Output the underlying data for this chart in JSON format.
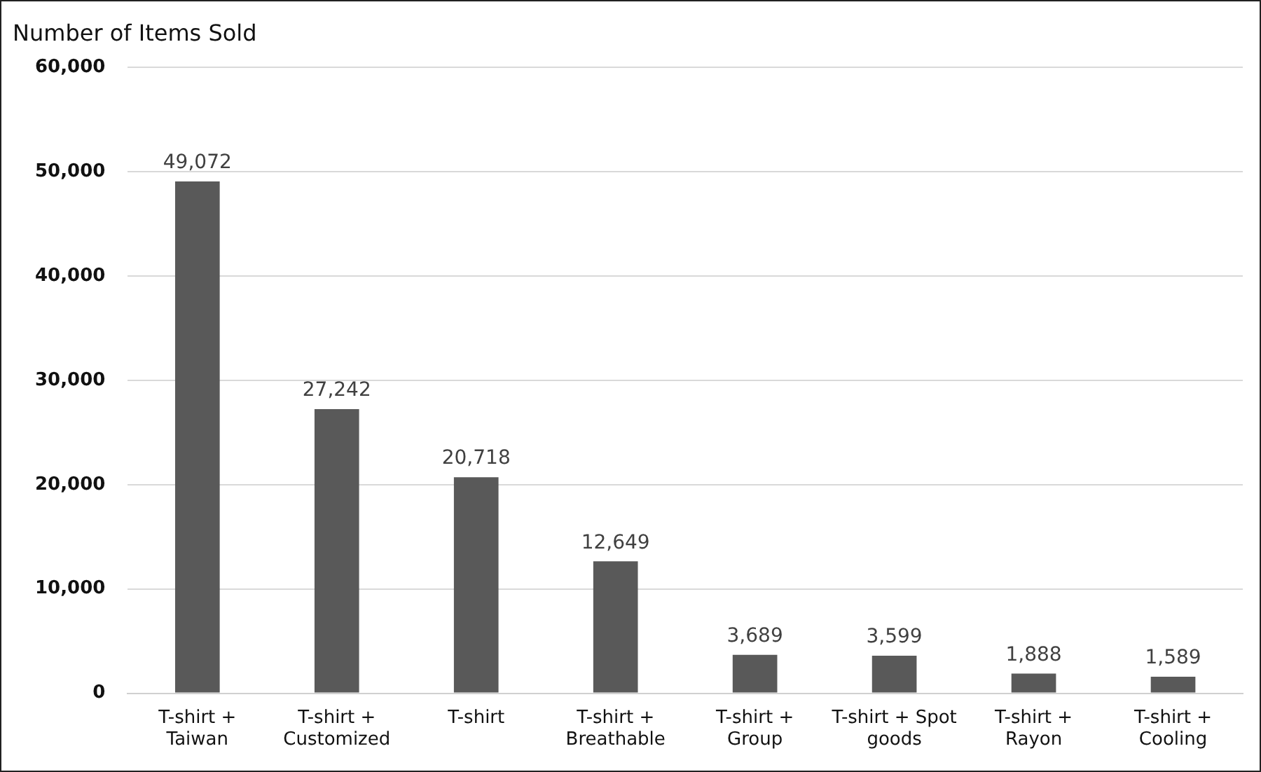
{
  "chart_data": {
    "type": "bar",
    "title": "Number of Items Sold",
    "categories": [
      "T-shirt + Taiwan",
      "T-shirt + Customized",
      "T-shirt",
      "T-shirt + Breathable",
      "T-shirt + Group",
      "T-shirt + Spot goods",
      "T-shirt + Rayon",
      "T-shirt + Cooling"
    ],
    "values": [
      49072,
      27242,
      20718,
      12649,
      3689,
      3599,
      1888,
      1589
    ],
    "value_labels": [
      "49,072",
      "27,242",
      "20,718",
      "12,649",
      "3,689",
      "3,599",
      "1,888",
      "1,589"
    ],
    "color": "#595959",
    "ylim": [
      0,
      60000
    ],
    "yticks": [
      0,
      {
        "value": 10000,
        "label": "10,000"
      },
      {
        "value": 20000,
        "label": "20,000"
      },
      {
        "value": 30000,
        "label": "30,000"
      },
      {
        "value": 40000,
        "label": "40,000"
      },
      {
        "value": 50000,
        "label": "50,000"
      },
      {
        "value": 60000,
        "label": "60,000"
      }
    ],
    "grid": "y",
    "legend": false
  }
}
